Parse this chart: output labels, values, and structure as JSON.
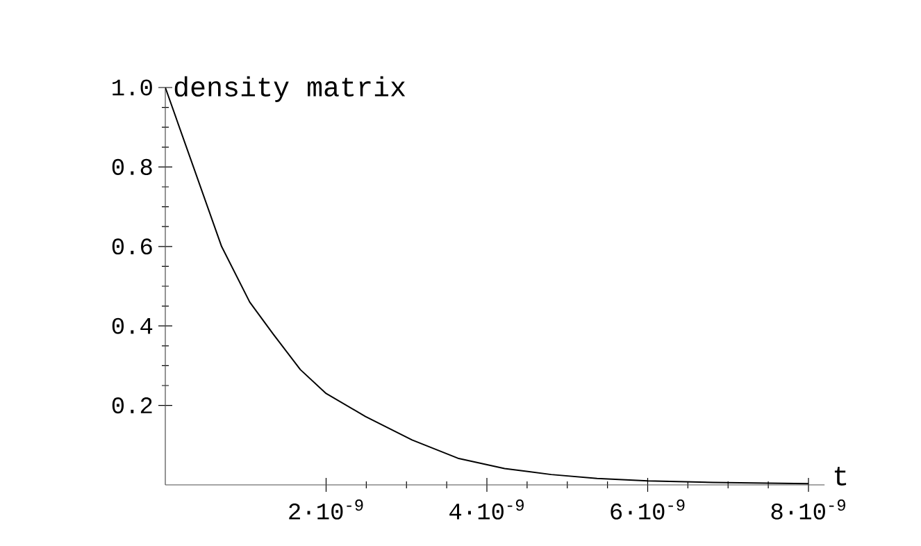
{
  "chart_data": {
    "type": "line",
    "xlabel": "t",
    "ylabel": "density matrix",
    "x": [
      0,
      3.5e-10,
      7e-10,
      1.05e-09,
      1.34e-09,
      1.68e-09,
      2e-09,
      2.49e-09,
      3.07e-09,
      3.64e-09,
      4.22e-09,
      4.8e-09,
      5.37e-09,
      6e-09,
      6.81e-09,
      8e-09
    ],
    "series": [
      {
        "color": "#000000",
        "values": [
          1.0,
          0.8,
          0.6,
          0.46,
          0.38,
          0.29,
          0.23,
          0.172,
          0.113,
          0.067,
          0.041,
          0.026,
          0.016,
          0.01,
          0.006,
          0.003
        ]
      }
    ],
    "xlim": [
      0,
      8.2e-09
    ],
    "ylim": [
      0,
      1.0
    ],
    "xticks": [
      {
        "value": 2e-09,
        "label": "2·10$^{-9}$"
      },
      {
        "value": 4e-09,
        "label": "4·10$^{-9}$"
      },
      {
        "value": 6e-09,
        "label": "6·10$^{-9}$"
      },
      {
        "value": 8e-09,
        "label": "8·10$^{-9}$"
      }
    ],
    "yticks": [
      {
        "value": 0.2,
        "label": "0.2"
      },
      {
        "value": 0.4,
        "label": "0.4"
      },
      {
        "value": 0.6,
        "label": "0.6"
      },
      {
        "value": 0.8,
        "label": "0.8"
      },
      {
        "value": 1.0,
        "label": "1.0"
      }
    ],
    "marker": "none"
  }
}
